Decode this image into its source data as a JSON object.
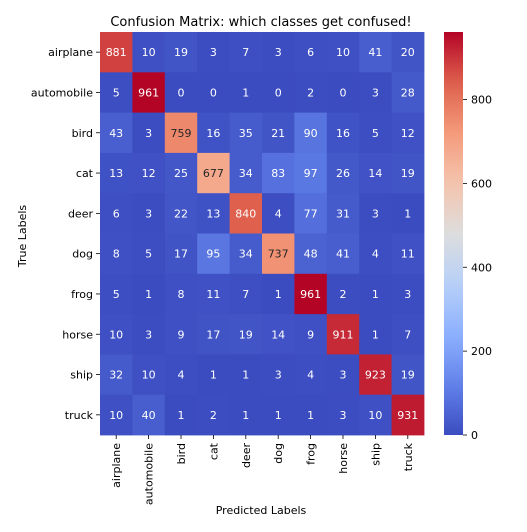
{
  "chart_data": {
    "type": "heatmap",
    "title": "Confusion Matrix: which classes get confused!",
    "xlabel": "Predicted Labels",
    "ylabel": "True Labels",
    "x_categories": [
      "airplane",
      "automobile",
      "bird",
      "cat",
      "deer",
      "dog",
      "frog",
      "horse",
      "ship",
      "truck"
    ],
    "y_categories": [
      "airplane",
      "automobile",
      "bird",
      "cat",
      "deer",
      "dog",
      "frog",
      "horse",
      "ship",
      "truck"
    ],
    "values": [
      [
        881,
        10,
        19,
        3,
        7,
        3,
        6,
        10,
        41,
        20
      ],
      [
        5,
        961,
        0,
        0,
        1,
        0,
        2,
        0,
        3,
        28
      ],
      [
        43,
        3,
        759,
        16,
        35,
        21,
        90,
        16,
        5,
        12
      ],
      [
        13,
        12,
        25,
        677,
        34,
        83,
        97,
        26,
        14,
        19
      ],
      [
        6,
        3,
        22,
        13,
        840,
        4,
        77,
        31,
        3,
        1
      ],
      [
        8,
        5,
        17,
        95,
        34,
        737,
        48,
        41,
        4,
        11
      ],
      [
        5,
        1,
        8,
        11,
        7,
        1,
        961,
        2,
        1,
        3
      ],
      [
        10,
        3,
        9,
        17,
        19,
        14,
        9,
        911,
        1,
        7
      ],
      [
        32,
        10,
        4,
        1,
        1,
        3,
        4,
        3,
        923,
        19
      ],
      [
        10,
        40,
        1,
        2,
        1,
        1,
        1,
        3,
        10,
        931
      ]
    ],
    "colormap": "coolwarm",
    "vmin": 0,
    "vmax": 961,
    "colorbar_ticks": [
      0,
      200,
      400,
      600,
      800
    ],
    "annotations": true,
    "grid": false
  }
}
